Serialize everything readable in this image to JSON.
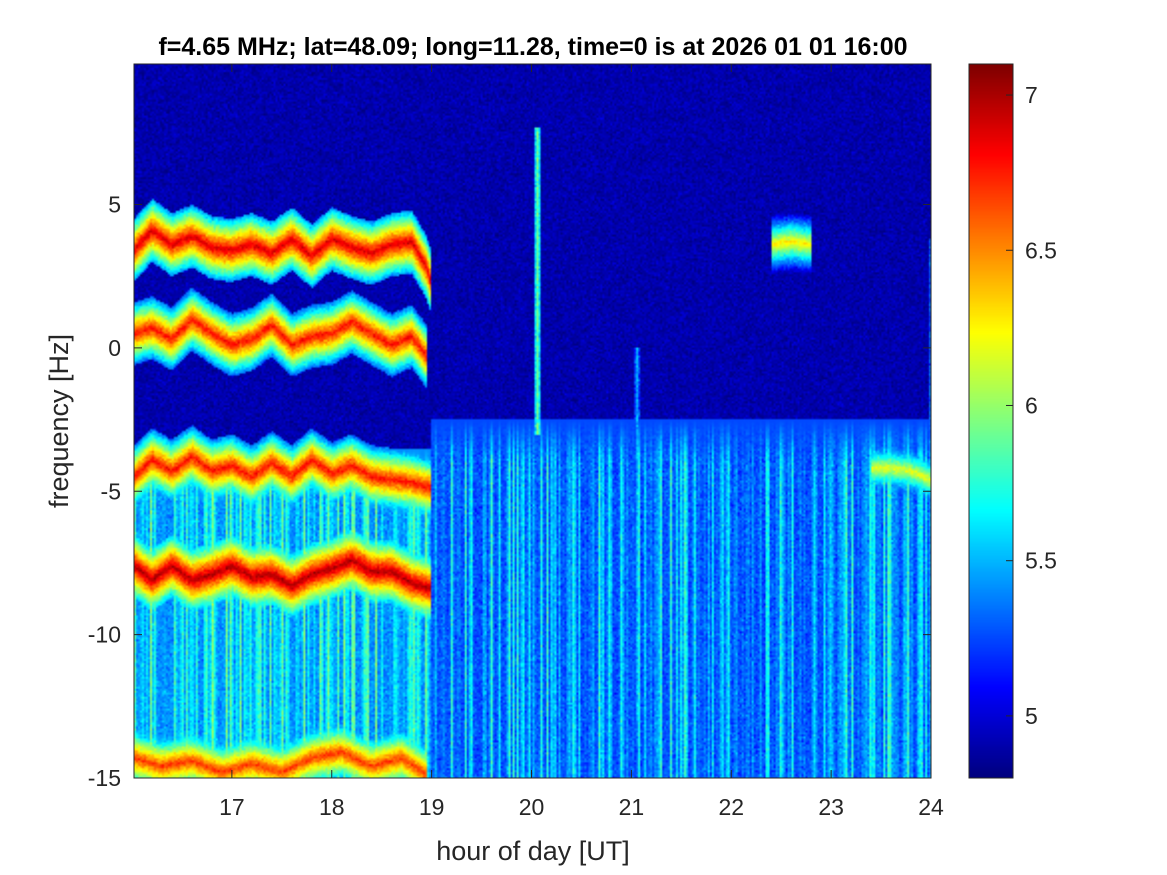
{
  "chart_data": {
    "type": "heatmap",
    "title": "f=4.65 MHz;  lat=48.09; long=11.28, time=0 is at 2026 01 01 16:00",
    "xlabel": "hour of day [UT]",
    "ylabel": "frequency [Hz]",
    "xlim": [
      16.02,
      24.0
    ],
    "ylim": [
      -15,
      9.9
    ],
    "xticks": [
      17,
      18,
      19,
      20,
      21,
      22,
      23,
      24
    ],
    "yticks": [
      5,
      0,
      -5,
      -10,
      -15
    ],
    "colormap": "jet",
    "colorbar": {
      "clim": [
        4.8,
        7.1
      ],
      "ticks": [
        7,
        6.5,
        6,
        5.5,
        5
      ]
    },
    "background_level": 4.9,
    "doppler_traces": [
      {
        "x": [
          16.02,
          16.2,
          16.4,
          16.6,
          16.8,
          17.0,
          17.2,
          17.4,
          17.6,
          17.8,
          18.0,
          18.2,
          18.4,
          18.6,
          18.8,
          18.95,
          19.0
        ],
        "y": [
          3.4,
          4.1,
          3.6,
          3.9,
          3.5,
          3.4,
          3.6,
          3.3,
          3.8,
          3.2,
          3.8,
          3.5,
          3.3,
          3.6,
          3.7,
          2.8,
          2.2
        ],
        "level": 6.9
      },
      {
        "x": [
          16.02,
          16.2,
          16.4,
          16.6,
          16.8,
          17.0,
          17.2,
          17.4,
          17.6,
          17.8,
          18.0,
          18.2,
          18.4,
          18.6,
          18.8,
          18.95
        ],
        "y": [
          0.5,
          0.7,
          0.3,
          1.0,
          0.5,
          0.1,
          0.3,
          0.8,
          0.1,
          0.4,
          0.5,
          0.9,
          0.5,
          0.1,
          0.4,
          -0.3
        ],
        "level": 6.8
      },
      {
        "x": [
          16.02,
          16.2,
          16.4,
          16.6,
          16.8,
          17.0,
          17.2,
          17.4,
          17.6,
          17.8,
          18.0,
          18.2,
          18.4,
          18.6,
          18.8,
          19.0
        ],
        "y": [
          -4.5,
          -3.9,
          -4.3,
          -3.8,
          -4.3,
          -4.1,
          -4.5,
          -4.0,
          -4.5,
          -3.9,
          -4.4,
          -4.1,
          -4.5,
          -4.6,
          -4.7,
          -4.9
        ],
        "level": 6.8
      },
      {
        "x": [
          16.02,
          16.2,
          16.4,
          16.6,
          16.8,
          17.0,
          17.2,
          17.4,
          17.6,
          17.8,
          18.0,
          18.2,
          18.4,
          18.6,
          18.8,
          19.0
        ],
        "y": [
          -7.6,
          -8.1,
          -7.6,
          -8.1,
          -7.9,
          -7.6,
          -8.0,
          -7.9,
          -8.3,
          -7.9,
          -7.7,
          -7.4,
          -7.8,
          -7.8,
          -8.2,
          -8.4
        ],
        "level": 7.0
      },
      {
        "x": [
          16.02,
          16.3,
          16.6,
          16.9,
          17.2,
          17.5,
          17.8,
          18.1,
          18.4,
          18.7,
          18.95
        ],
        "y": [
          -14.3,
          -14.6,
          -14.4,
          -14.8,
          -14.5,
          -14.8,
          -14.3,
          -14.1,
          -14.6,
          -14.3,
          -14.9
        ],
        "level": 6.7
      },
      {
        "x": [
          22.4,
          22.6,
          22.8
        ],
        "y": [
          3.6,
          3.7,
          3.6
        ],
        "level": 6.3
      },
      {
        "x": [
          23.4,
          23.6,
          23.8,
          24.0
        ],
        "y": [
          -4.2,
          -4.2,
          -4.3,
          -4.6
        ],
        "level": 6.2
      }
    ],
    "spread_regions": [
      {
        "x": [
          16.02,
          19.0
        ],
        "y": [
          -15,
          -3.5
        ],
        "level": 5.4
      },
      {
        "x": [
          19.0,
          24.0
        ],
        "y": [
          -15,
          -2.5
        ],
        "level": 5.25
      }
    ],
    "vertical_streaks": [
      {
        "x": 20.05,
        "y": [
          -3,
          7.7
        ],
        "level": 5.9
      },
      {
        "x": 21.05,
        "y": [
          -13,
          0
        ],
        "level": 5.5
      },
      {
        "x": 24.0,
        "y": [
          -15,
          3.8
        ],
        "level": 5.6
      }
    ]
  }
}
